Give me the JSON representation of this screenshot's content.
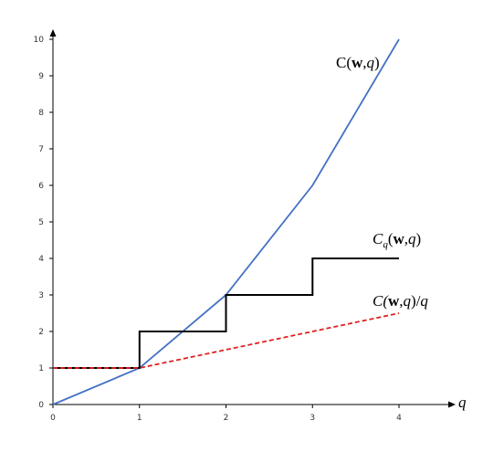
{
  "chart_data": {
    "type": "line",
    "xlim": [
      0,
      4
    ],
    "ylim": [
      0,
      10
    ],
    "x_ticks": [
      "0",
      "1",
      "2",
      "3",
      "4"
    ],
    "y_ticks": [
      "0",
      "1",
      "2",
      "3",
      "4",
      "5",
      "6",
      "7",
      "8",
      "9",
      "10"
    ],
    "xlabel": "q",
    "ylabel": "",
    "grid": false,
    "legend": "inline labels near line ends",
    "series": [
      {
        "name": "C(w,q)",
        "label_parts": [
          "C(",
          "w",
          ",",
          "q",
          ")"
        ],
        "color": "#4472c4",
        "style": "solid",
        "x": [
          0,
          1,
          2,
          3,
          4
        ],
        "y": [
          0,
          1,
          3,
          6,
          10
        ]
      },
      {
        "name": "Cq(w,q)",
        "label_parts": [
          "C",
          "q",
          "(",
          "w",
          ",",
          "q",
          ")"
        ],
        "color": "#000000",
        "style": "step",
        "x": [
          0,
          1,
          1,
          2,
          2,
          3,
          3,
          4
        ],
        "y": [
          1,
          1,
          2,
          2,
          3,
          3,
          4,
          4
        ]
      },
      {
        "name": "C(w,q)/q",
        "label_parts": [
          "C(",
          "w",
          ",",
          "q",
          ")/",
          "q"
        ],
        "color": "#e02020",
        "style": "dashed",
        "x": [
          0,
          1,
          2,
          3,
          4
        ],
        "y": [
          1,
          1,
          1.5,
          2,
          2.5
        ]
      }
    ]
  }
}
